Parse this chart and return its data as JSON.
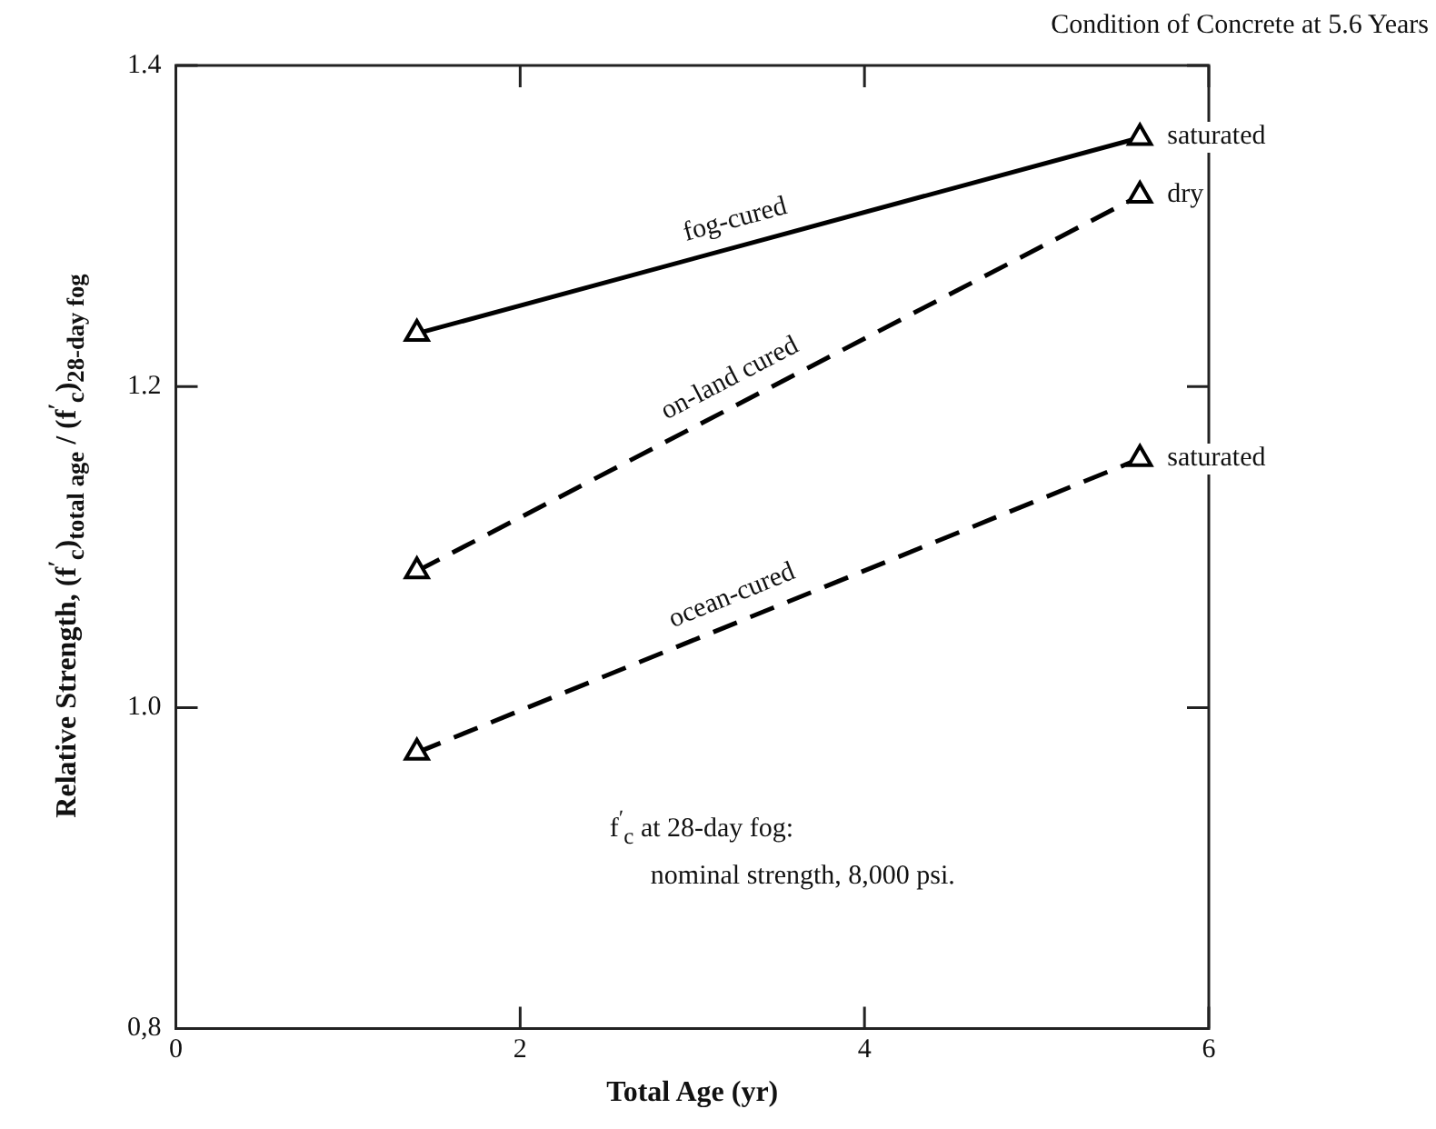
{
  "chart_data": {
    "type": "line",
    "title": "Condition of Concrete at 5.6 Years",
    "xlabel": "Total Age (yr)",
    "ylabel": "Relative Strength, (f$^{′}$$_{c}$)$_{total age}$ / (f$^{′}$$_{c}$)$_{28-day fog}$",
    "x": [
      1.4,
      5.6
    ],
    "series": [
      {
        "name": "fog-cured",
        "color": "#000000",
        "values": [
          1.233,
          1.355
        ],
        "line_style": "solid"
      },
      {
        "name": "on-land cured",
        "color": "#000000",
        "values": [
          1.085,
          1.319
        ],
        "line_style": "dashed"
      },
      {
        "name": "ocean-cured",
        "color": "#000000",
        "values": [
          0.972,
          1.155
        ],
        "line_style": "dashed"
      }
    ],
    "annotations": [
      "saturated",
      "dry",
      "saturated",
      "f$^{′}$$_{c}$ at 28-day fog:\n      nominal strength, 8,000 psi."
    ],
    "xlim": [
      0,
      6
    ],
    "xticks": [
      0,
      2,
      4,
      6
    ],
    "ylim": [
      0.8,
      1.4
    ],
    "yticks": [
      {
        "value": 0.8,
        "label": "0,8"
      },
      {
        "value": 1,
        "label": "1.0"
      },
      1.2,
      1.4
    ],
    "grid": false,
    "marker": "triangle"
  }
}
